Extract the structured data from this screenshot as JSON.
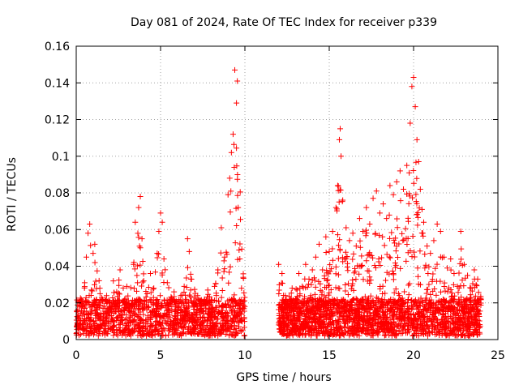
{
  "chart_data": {
    "type": "scatter",
    "title": "Day 081 of 2024, Rate Of TEC Index for receiver p339",
    "xlabel": "GPS time / hours",
    "ylabel": "ROTI / TECUs",
    "xlim": [
      0,
      25
    ],
    "ylim": [
      0,
      0.16
    ],
    "x_ticks": [
      0,
      5,
      10,
      15,
      20,
      25
    ],
    "y_ticks": [
      0,
      0.02,
      0.04,
      0.06,
      0.08,
      0.1,
      0.12,
      0.14,
      0.16
    ],
    "x_tick_labels": [
      "0",
      "5",
      "10",
      "15",
      "20",
      "25"
    ],
    "y_tick_labels": [
      "0",
      "0.02",
      "0.04",
      "0.06",
      "0.08",
      "0.1",
      "0.12",
      "0.14",
      "0.16"
    ],
    "grid": true,
    "marker": "+",
    "series": [
      {
        "color": "#ff0000",
        "points": [
          [
            0.1,
            0.012
          ],
          [
            0.2,
            0.008
          ],
          [
            0.3,
            0.022
          ],
          [
            0.4,
            0.015
          ],
          [
            0.5,
            0.031
          ],
          [
            0.6,
            0.045
          ],
          [
            0.7,
            0.058
          ],
          [
            0.8,
            0.063
          ],
          [
            0.9,
            0.027
          ],
          [
            1.0,
            0.047
          ],
          [
            1.1,
            0.052
          ],
          [
            1.2,
            0.019
          ],
          [
            1.4,
            0.028
          ],
          [
            1.6,
            0.014
          ],
          [
            1.8,
            0.024
          ],
          [
            2.0,
            0.018
          ],
          [
            2.2,
            0.032
          ],
          [
            2.4,
            0.026
          ],
          [
            2.6,
            0.038
          ],
          [
            2.8,
            0.021
          ],
          [
            3.0,
            0.029
          ],
          [
            3.2,
            0.015
          ],
          [
            3.4,
            0.041
          ],
          [
            3.5,
            0.064
          ],
          [
            3.6,
            0.035
          ],
          [
            3.7,
            0.072
          ],
          [
            3.8,
            0.078
          ],
          [
            3.9,
            0.055
          ],
          [
            4.0,
            0.032
          ],
          [
            4.2,
            0.025
          ],
          [
            4.4,
            0.036
          ],
          [
            4.6,
            0.028
          ],
          [
            4.8,
            0.047
          ],
          [
            4.9,
            0.059
          ],
          [
            5.0,
            0.069
          ],
          [
            5.1,
            0.064
          ],
          [
            5.2,
            0.044
          ],
          [
            5.4,
            0.031
          ],
          [
            5.6,
            0.022
          ],
          [
            5.8,
            0.026
          ],
          [
            6.0,
            0.018
          ],
          [
            6.2,
            0.024
          ],
          [
            6.4,
            0.029
          ],
          [
            6.6,
            0.055
          ],
          [
            6.7,
            0.048
          ],
          [
            6.8,
            0.033
          ],
          [
            7.0,
            0.019
          ],
          [
            7.2,
            0.024
          ],
          [
            7.4,
            0.017
          ],
          [
            7.6,
            0.022
          ],
          [
            7.8,
            0.027
          ],
          [
            8.0,
            0.02
          ],
          [
            8.2,
            0.029
          ],
          [
            8.4,
            0.038
          ],
          [
            8.6,
            0.061
          ],
          [
            8.8,
            0.045
          ],
          [
            9.0,
            0.079
          ],
          [
            9.1,
            0.088
          ],
          [
            9.2,
            0.102
          ],
          [
            9.3,
            0.112
          ],
          [
            9.4,
            0.147
          ],
          [
            9.5,
            0.129
          ],
          [
            9.55,
            0.141
          ],
          [
            9.6,
            0.072
          ],
          [
            9.7,
            0.044
          ],
          [
            9.8,
            0.028
          ],
          [
            12.0,
            0.041
          ],
          [
            12.2,
            0.036
          ],
          [
            12.4,
            0.024
          ],
          [
            12.6,
            0.018
          ],
          [
            12.8,
            0.028
          ],
          [
            13.0,
            0.022
          ],
          [
            13.2,
            0.036
          ],
          [
            13.4,
            0.029
          ],
          [
            13.6,
            0.041
          ],
          [
            13.8,
            0.033
          ],
          [
            14.0,
            0.038
          ],
          [
            14.2,
            0.045
          ],
          [
            14.4,
            0.052
          ],
          [
            14.6,
            0.038
          ],
          [
            14.8,
            0.056
          ],
          [
            15.0,
            0.048
          ],
          [
            15.2,
            0.059
          ],
          [
            15.4,
            0.072
          ],
          [
            15.5,
            0.084
          ],
          [
            15.6,
            0.109
          ],
          [
            15.65,
            0.115
          ],
          [
            15.7,
            0.1
          ],
          [
            15.8,
            0.076
          ],
          [
            16.0,
            0.061
          ],
          [
            16.2,
            0.054
          ],
          [
            16.4,
            0.058
          ],
          [
            16.6,
            0.051
          ],
          [
            16.8,
            0.066
          ],
          [
            17.0,
            0.059
          ],
          [
            17.2,
            0.072
          ],
          [
            17.4,
            0.063
          ],
          [
            17.6,
            0.077
          ],
          [
            17.8,
            0.081
          ],
          [
            18.0,
            0.069
          ],
          [
            18.2,
            0.074
          ],
          [
            18.4,
            0.066
          ],
          [
            18.6,
            0.084
          ],
          [
            18.8,
            0.079
          ],
          [
            19.0,
            0.086
          ],
          [
            19.2,
            0.092
          ],
          [
            19.4,
            0.082
          ],
          [
            19.6,
            0.095
          ],
          [
            19.8,
            0.118
          ],
          [
            19.9,
            0.138
          ],
          [
            20.0,
            0.143
          ],
          [
            20.1,
            0.127
          ],
          [
            20.2,
            0.109
          ],
          [
            20.3,
            0.097
          ],
          [
            20.4,
            0.082
          ],
          [
            20.5,
            0.071
          ],
          [
            20.6,
            0.064
          ],
          [
            20.8,
            0.051
          ],
          [
            21.0,
            0.047
          ],
          [
            21.2,
            0.054
          ],
          [
            21.4,
            0.063
          ],
          [
            21.6,
            0.059
          ],
          [
            21.8,
            0.045
          ],
          [
            22.0,
            0.039
          ],
          [
            22.2,
            0.044
          ],
          [
            22.4,
            0.036
          ],
          [
            22.6,
            0.029
          ],
          [
            22.8,
            0.059
          ],
          [
            23.0,
            0.041
          ],
          [
            23.2,
            0.035
          ],
          [
            23.4,
            0.028
          ],
          [
            23.6,
            0.038
          ],
          [
            23.8,
            0.033
          ],
          [
            23.9,
            0.022
          ]
        ]
      }
    ]
  }
}
